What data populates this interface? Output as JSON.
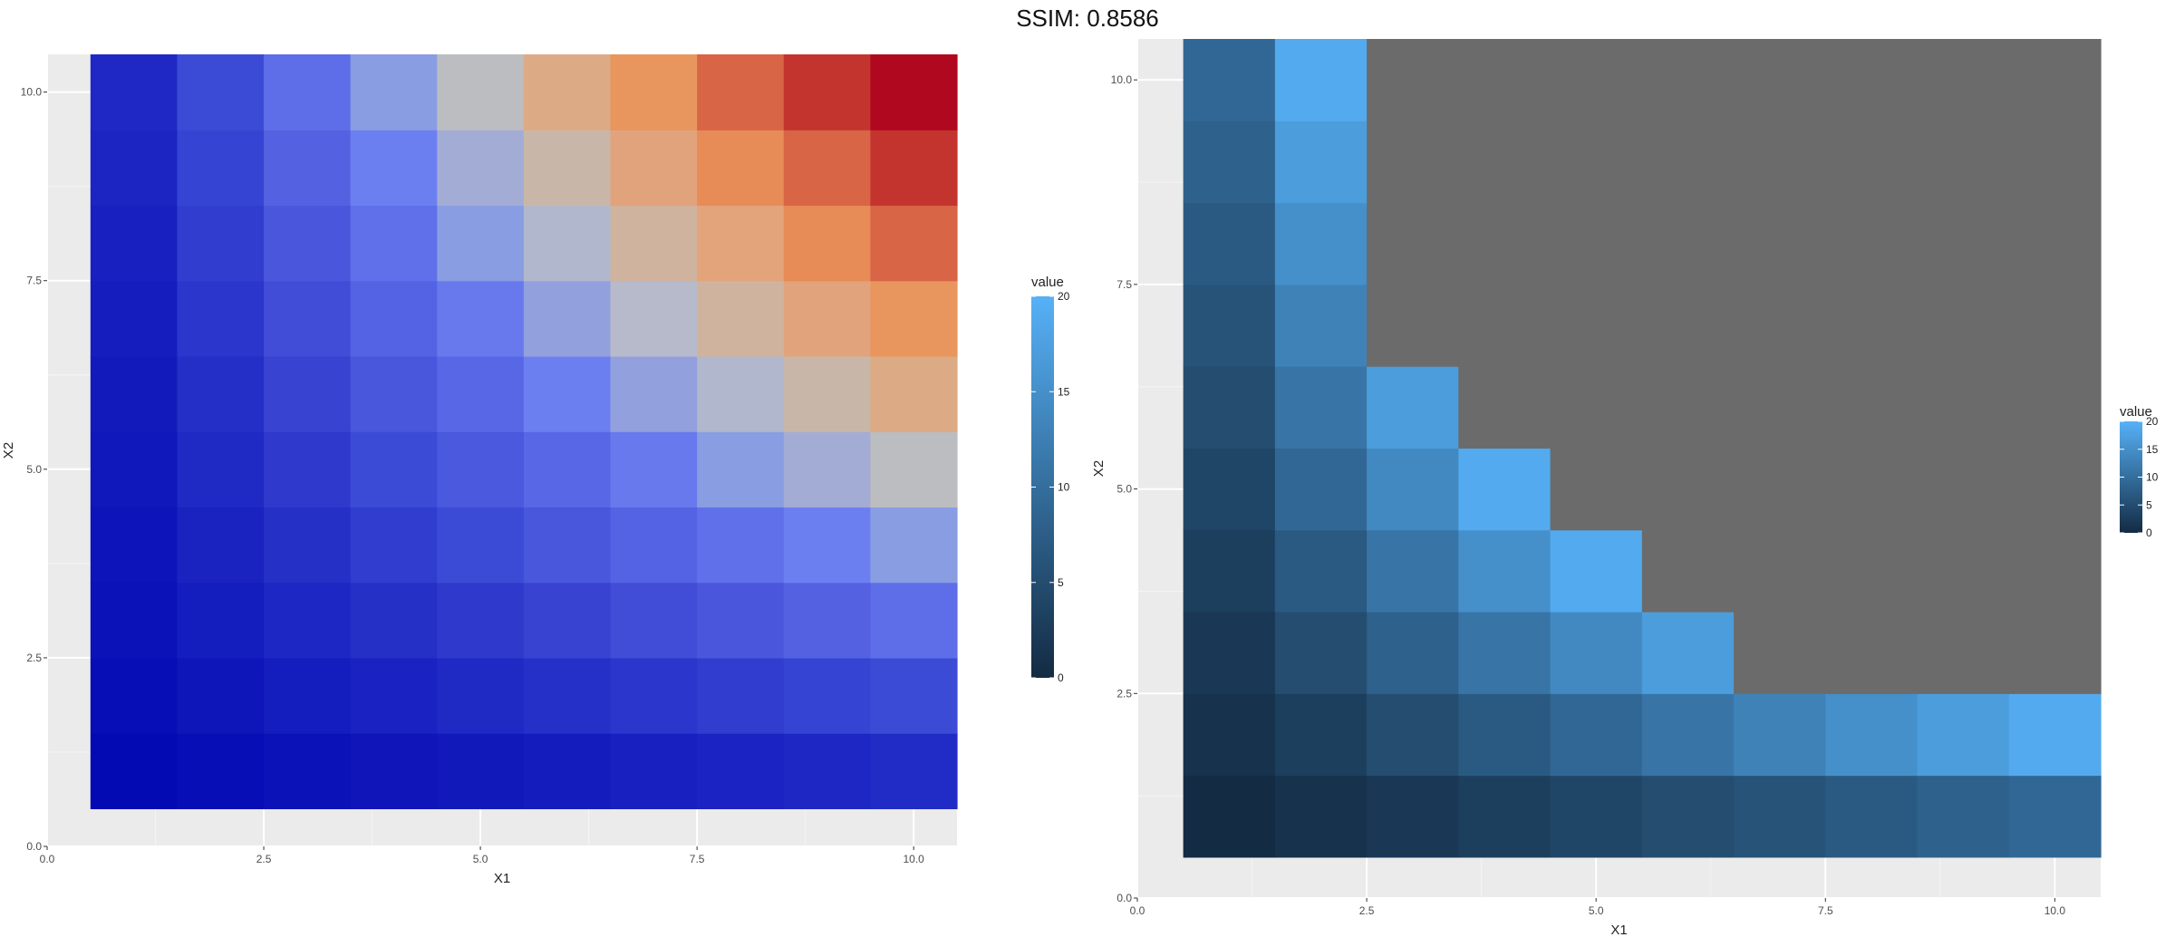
{
  "header": {
    "title": "SSIM: 0.8586"
  },
  "chart_data": [
    {
      "type": "heatmap",
      "title": "",
      "xlabel": "X1",
      "ylabel": "X2",
      "xlim": [
        0,
        10.5
      ],
      "ylim": [
        0,
        10.5
      ],
      "x_ticks": [
        0,
        2.5,
        5,
        7.5,
        10
      ],
      "x_tick_labels": [
        "0.0",
        "2.5",
        "5.0",
        "7.5",
        "10.0"
      ],
      "y_ticks": [
        0,
        2.5,
        5,
        7.5,
        10
      ],
      "y_tick_labels": [
        "0.0",
        "2.5",
        "5.0",
        "7.5",
        "10.0"
      ],
      "grid": true,
      "legend": {
        "title": "value",
        "position": "right",
        "range": [
          0,
          20
        ],
        "ticks": [
          0,
          5,
          10,
          15,
          20
        ],
        "tick_labels": [
          "0",
          "5",
          "10",
          "15",
          "20"
        ],
        "gradient": [
          "#132B43",
          "#56B1F7"
        ]
      },
      "x": [
        1,
        2,
        3,
        4,
        5,
        6,
        7,
        8,
        9,
        10
      ],
      "y": [
        1,
        2,
        3,
        4,
        5,
        6,
        7,
        8,
        9,
        10
      ],
      "colors": [
        [
          "#0309B3",
          "#070EB5",
          "#0B12B8",
          "#0F15B9",
          "#1219BB",
          "#141CBE",
          "#1820C0",
          "#1B23C2",
          "#1E27C4",
          "#212BC6"
        ],
        [
          "#070EB5",
          "#0E16BA",
          "#141DBD",
          "#1A22C1",
          "#1F29C3",
          "#2430C8",
          "#2A36CC",
          "#303DCF",
          "#3644D3",
          "#3C4BD6"
        ],
        [
          "#0A12B8",
          "#141DBD",
          "#1D27C3",
          "#2530C7",
          "#2F3ACD",
          "#3843D1",
          "#414DD7",
          "#4A57DC",
          "#5462E2",
          "#5E6DE8"
        ],
        [
          "#0D15BA",
          "#1A22C0",
          "#2530C7",
          "#303DCF",
          "#3C4BD6",
          "#4857DC",
          "#5463E3",
          "#5F70EA",
          "#6C7FF1",
          "#899DE2"
        ],
        [
          "#1017BB",
          "#1F29C3",
          "#2F3ACD",
          "#3C4BD6",
          "#4A59DD",
          "#5867E5",
          "#6879EE",
          "#899DE2",
          "#A3ACD4",
          "#BBBDC0"
        ],
        [
          "#131ABC",
          "#242FC7",
          "#3843D1",
          "#4857DC",
          "#5867E5",
          "#6C7FF1",
          "#93A0DE",
          "#B1B7CC",
          "#C8B7A8",
          "#DCAB86"
        ],
        [
          "#161DBE",
          "#2A36CC",
          "#414DD7",
          "#5463E3",
          "#6879EE",
          "#93A0DE",
          "#B7BACA",
          "#D0B39E",
          "#E1A37C",
          "#E8965D"
        ],
        [
          "#1920C0",
          "#303DCF",
          "#4A57DC",
          "#5F70EA",
          "#899DE2",
          "#B1B7CC",
          "#D0B39E",
          "#E3A37B",
          "#E78B57",
          "#D86546"
        ],
        [
          "#1C24C2",
          "#3644D3",
          "#5462E2",
          "#6C7FF1",
          "#A3ACD4",
          "#C8B7A8",
          "#E1A37C",
          "#E78B57",
          "#D86546",
          "#C4342E"
        ],
        [
          "#1F28C4",
          "#3C4BD6",
          "#5E6DE8",
          "#899DE2",
          "#BBBDC0",
          "#DCAB86",
          "#E8965D",
          "#D86546",
          "#C4342E",
          "#B0081E"
        ]
      ]
    },
    {
      "type": "heatmap",
      "title": "",
      "xlabel": "X1",
      "ylabel": "X2",
      "xlim": [
        0,
        10.5
      ],
      "ylim": [
        0,
        10.5
      ],
      "x_ticks": [
        0,
        2.5,
        5,
        7.5,
        10
      ],
      "x_tick_labels": [
        "0.0",
        "2.5",
        "5.0",
        "7.5",
        "10.0"
      ],
      "y_ticks": [
        0,
        2.5,
        5,
        7.5,
        10
      ],
      "y_tick_labels": [
        "0.0",
        "2.5",
        "5.0",
        "7.5",
        "10.0"
      ],
      "grid": true,
      "na_color": "#6B6B6B",
      "legend": {
        "title": "value",
        "position": "right",
        "range": [
          0,
          20
        ],
        "ticks": [
          0,
          5,
          10,
          15,
          20
        ],
        "tick_labels": [
          "0",
          "5",
          "10",
          "15",
          "20"
        ],
        "gradient": [
          "#132B43",
          "#56B1F7"
        ]
      },
      "x": [
        1,
        2,
        3,
        4,
        5,
        6,
        7,
        8,
        9,
        10
      ],
      "y": [
        1,
        2,
        3,
        4,
        5,
        6,
        7,
        8,
        9,
        10
      ],
      "values": [
        [
          0,
          1,
          2,
          3,
          4,
          5,
          6,
          7,
          8,
          9
        ],
        [
          1,
          3,
          5,
          7,
          9,
          11,
          13,
          15,
          17,
          19
        ],
        [
          2,
          5,
          8,
          11,
          14,
          17,
          null,
          null,
          null,
          null
        ],
        [
          3,
          7,
          11,
          15,
          19,
          null,
          null,
          null,
          null,
          null
        ],
        [
          4,
          9,
          14,
          19,
          null,
          null,
          null,
          null,
          null,
          null
        ],
        [
          5,
          11,
          17,
          null,
          null,
          null,
          null,
          null,
          null,
          null
        ],
        [
          6,
          13,
          null,
          null,
          null,
          null,
          null,
          null,
          null,
          null
        ],
        [
          7,
          15,
          null,
          null,
          null,
          null,
          null,
          null,
          null,
          null
        ],
        [
          8,
          17,
          null,
          null,
          null,
          null,
          null,
          null,
          null,
          null
        ],
        [
          9,
          19,
          null,
          null,
          null,
          null,
          null,
          null,
          null,
          null
        ]
      ]
    }
  ]
}
